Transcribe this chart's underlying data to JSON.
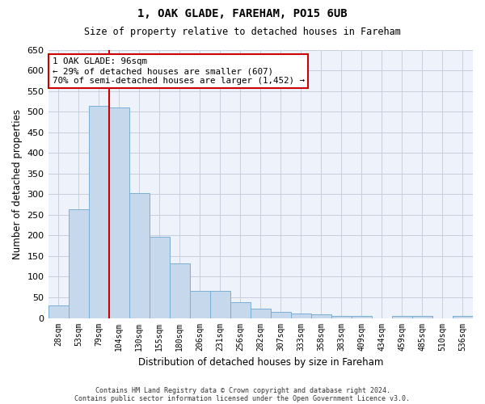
{
  "title1": "1, OAK GLADE, FAREHAM, PO15 6UB",
  "title2": "Size of property relative to detached houses in Fareham",
  "xlabel": "Distribution of detached houses by size in Fareham",
  "ylabel": "Number of detached properties",
  "categories": [
    "28sqm",
    "53sqm",
    "79sqm",
    "104sqm",
    "130sqm",
    "155sqm",
    "180sqm",
    "206sqm",
    "231sqm",
    "256sqm",
    "282sqm",
    "307sqm",
    "333sqm",
    "358sqm",
    "383sqm",
    "409sqm",
    "434sqm",
    "459sqm",
    "485sqm",
    "510sqm",
    "536sqm"
  ],
  "values": [
    30,
    263,
    513,
    510,
    302,
    196,
    133,
    65,
    65,
    38,
    22,
    15,
    10,
    8,
    5,
    5,
    0,
    5,
    5,
    0,
    5
  ],
  "bar_color": "#c6d9ec",
  "bar_edge_color": "#7bafd4",
  "vline_color": "#cc0000",
  "vline_x": 2.5,
  "annotation_text": "1 OAK GLADE: 96sqm\n← 29% of detached houses are smaller (607)\n70% of semi-detached houses are larger (1,452) →",
  "annotation_box_color": "#ffffff",
  "annotation_box_edge": "#cc0000",
  "ylim": [
    0,
    650
  ],
  "yticks": [
    0,
    50,
    100,
    150,
    200,
    250,
    300,
    350,
    400,
    450,
    500,
    550,
    600,
    650
  ],
  "footnote1": "Contains HM Land Registry data © Crown copyright and database right 2024.",
  "footnote2": "Contains public sector information licensed under the Open Government Licence v3.0.",
  "bg_color": "#eef2fb",
  "grid_color": "#c8cedc"
}
